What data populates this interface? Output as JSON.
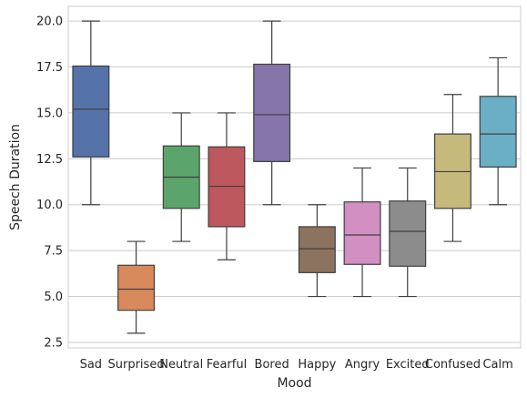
{
  "chart_data": {
    "type": "box",
    "title": "",
    "xlabel": "Mood",
    "ylabel": "Speech Duration",
    "ylim": [
      2.2,
      20.8
    ],
    "yticks": [
      2.5,
      5.0,
      7.5,
      10.0,
      12.5,
      15.0,
      17.5,
      20.0
    ],
    "ytick_labels": [
      "2.5",
      "5.0",
      "7.5",
      "10.0",
      "12.5",
      "15.0",
      "17.5",
      "20.0"
    ],
    "grid": true,
    "categories": [
      "Sad",
      "Surprised",
      "Neutral",
      "Fearful",
      "Bored",
      "Happy",
      "Angry",
      "Excited",
      "Confused",
      "Calm"
    ],
    "boxes": [
      {
        "category": "Sad",
        "color": "#5573a8",
        "min": 10.0,
        "q1": 12.6,
        "median": 15.2,
        "q3": 17.55,
        "max": 20.0
      },
      {
        "category": "Surprised",
        "color": "#d88a5c",
        "min": 3.0,
        "q1": 4.25,
        "median": 5.4,
        "q3": 6.7,
        "max": 8.0
      },
      {
        "category": "Neutral",
        "color": "#5ba46b",
        "min": 8.0,
        "q1": 9.8,
        "median": 11.5,
        "q3": 13.2,
        "max": 15.0
      },
      {
        "category": "Fearful",
        "color": "#bd585e",
        "min": 7.0,
        "q1": 8.8,
        "median": 11.0,
        "q3": 13.15,
        "max": 15.0
      },
      {
        "category": "Bored",
        "color": "#8575aa",
        "min": 10.0,
        "q1": 12.35,
        "median": 14.9,
        "q3": 17.65,
        "max": 20.0
      },
      {
        "category": "Happy",
        "color": "#8c735f",
        "min": 5.0,
        "q1": 6.3,
        "median": 7.6,
        "q3": 8.8,
        "max": 10.0
      },
      {
        "category": "Angry",
        "color": "#d18fc2",
        "min": 5.0,
        "q1": 6.75,
        "median": 8.35,
        "q3": 10.15,
        "max": 12.0
      },
      {
        "category": "Excited",
        "color": "#8c8c8c",
        "min": 5.0,
        "q1": 6.65,
        "median": 8.55,
        "q3": 10.2,
        "max": 12.0
      },
      {
        "category": "Confused",
        "color": "#c5b97c",
        "min": 8.0,
        "q1": 9.8,
        "median": 11.8,
        "q3": 13.85,
        "max": 16.0
      },
      {
        "category": "Calm",
        "color": "#6aafc6",
        "min": 10.0,
        "q1": 12.05,
        "median": 13.85,
        "q3": 15.9,
        "max": 18.0
      }
    ]
  }
}
